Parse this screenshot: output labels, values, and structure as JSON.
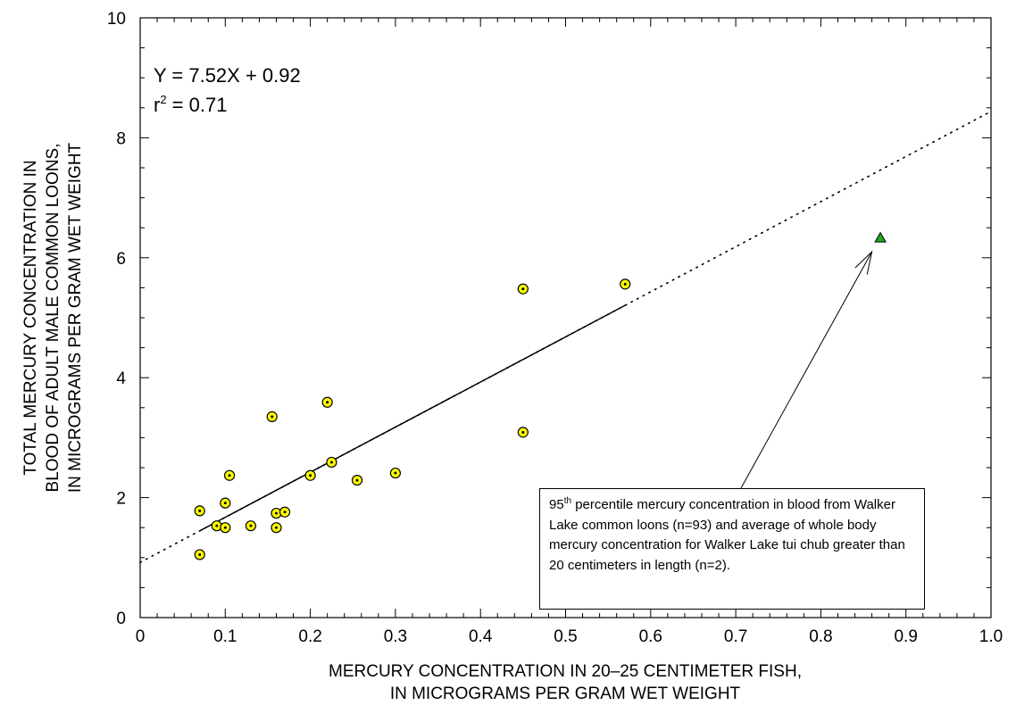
{
  "chart_data": {
    "type": "scatter",
    "xlabel": [
      "MERCURY CONCENTRATION IN 20–25 CENTIMETER FISH,",
      "IN MICROGRAMS PER GRAM WET WEIGHT"
    ],
    "ylabel": [
      "TOTAL MERCURY CONCENTRATION IN",
      "BLOOD OF ADULT MALE COMMON LOONS,",
      "IN MICROGRAMS PER GRAM WET WEIGHT"
    ],
    "xlim": [
      0,
      1.0
    ],
    "ylim": [
      0,
      10
    ],
    "xticks": [
      "0",
      "0.1",
      "0.2",
      "0.3",
      "0.4",
      "0.5",
      "0.6",
      "0.7",
      "0.8",
      "0.9",
      "1.0"
    ],
    "yticks": [
      "0",
      "2",
      "4",
      "6",
      "8",
      "10"
    ],
    "grid": false,
    "series": [
      {
        "marker": "circle-dot",
        "color": "#ffff00",
        "x": [
          0.07,
          0.07,
          0.09,
          0.1,
          0.1,
          0.105,
          0.13,
          0.155,
          0.16,
          0.16,
          0.17,
          0.2,
          0.22,
          0.225,
          0.255,
          0.3,
          0.45,
          0.45,
          0.57
        ],
        "y": [
          1.05,
          1.78,
          1.53,
          1.5,
          1.91,
          2.37,
          1.53,
          3.35,
          1.5,
          1.74,
          1.76,
          2.37,
          3.59,
          2.59,
          2.29,
          2.41,
          5.48,
          3.09,
          5.56
        ]
      },
      {
        "marker": "triangle",
        "color": "#22aa22",
        "x": [
          0.87
        ],
        "y": [
          6.33
        ]
      }
    ],
    "regression": {
      "slope": 7.52,
      "intercept": 0.92,
      "solid_range": [
        0.07,
        0.57
      ],
      "dotted_range": [
        0,
        1.0
      ]
    },
    "annotations": {
      "equation": "Y = 7.52X + 0.92",
      "r2_label": "r",
      "r2_sup": "2",
      "r2_value": " = 0.71",
      "callout": {
        "pre": "95",
        "sup": "th",
        "text": " percentile mercury concentration in blood from Walker Lake common loons (n=93) and average of whole body mercury concentration for Walker Lake tui chub greater than 20 centimeters in length (n=2).",
        "arrow_from": [
          0.7,
          2.0
        ],
        "arrow_to": [
          0.86,
          6.1
        ]
      }
    }
  }
}
